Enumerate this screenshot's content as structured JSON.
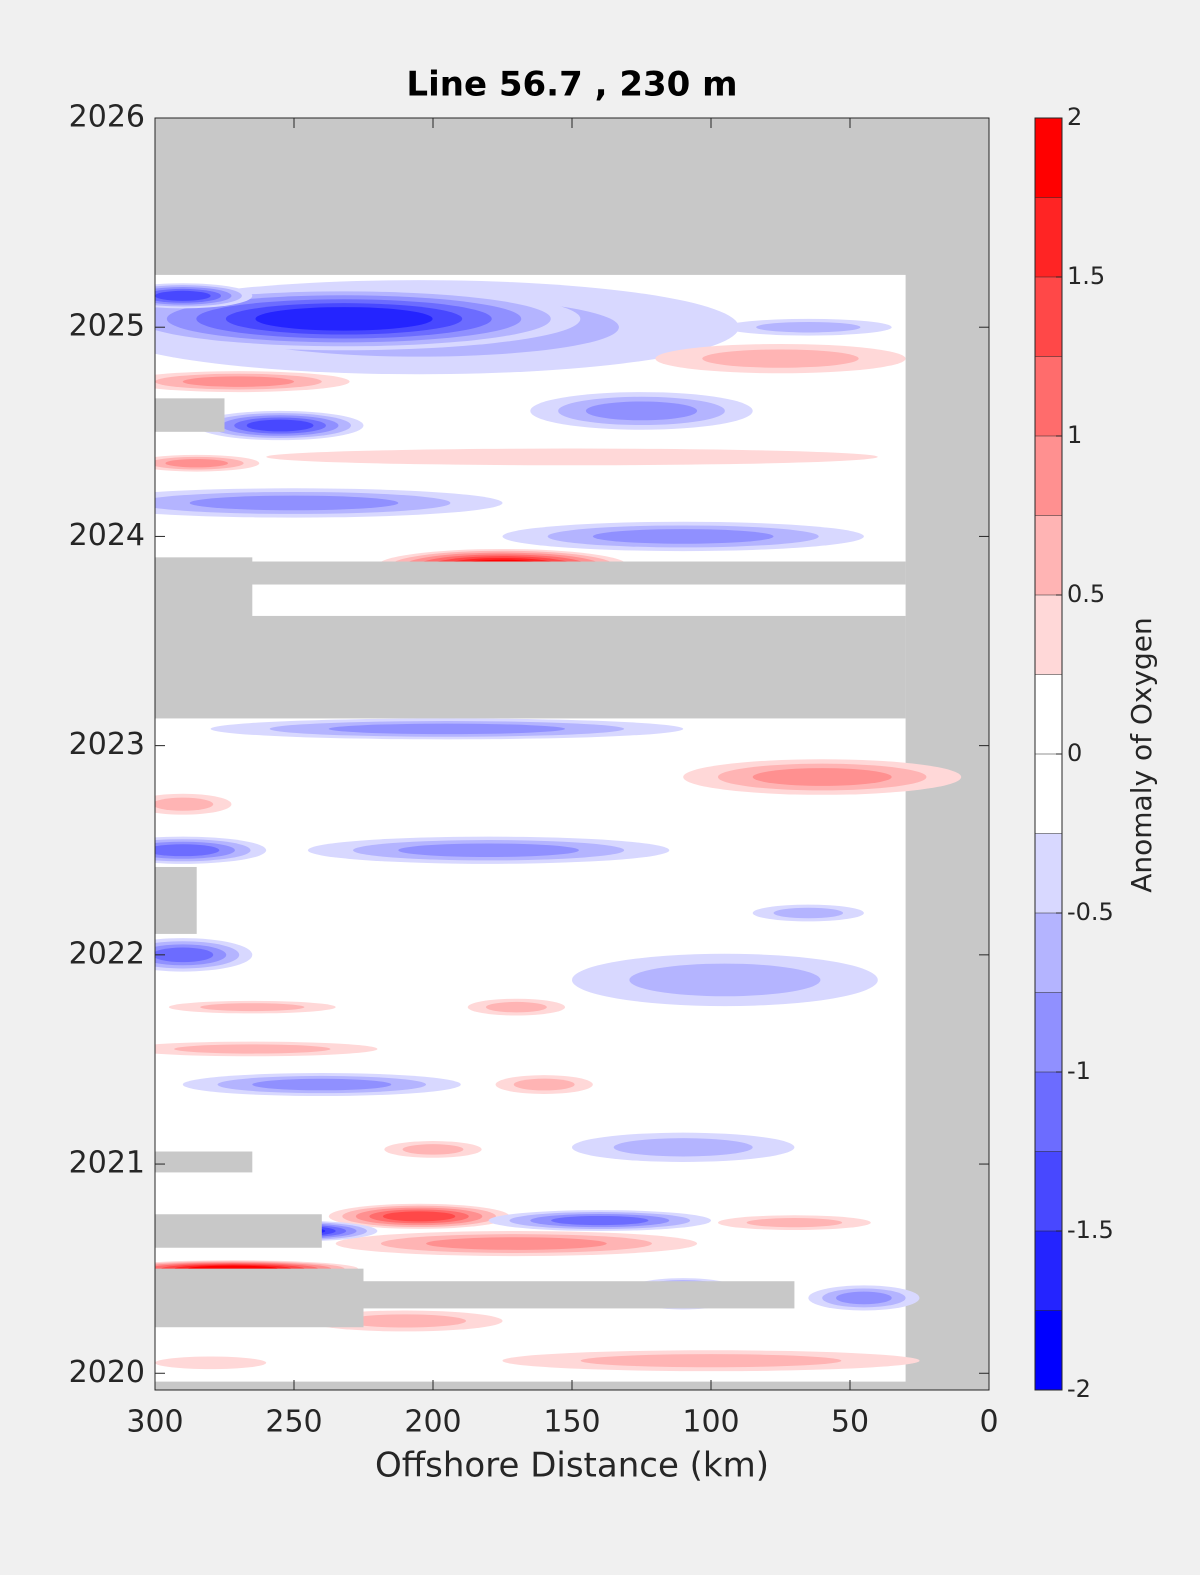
{
  "chart_data": {
    "type": "contour",
    "title": "Line 56.7 , 230 m",
    "x_label": "Offshore Distance (km)",
    "xlim": [
      300,
      0
    ],
    "xticks": [
      300,
      250,
      200,
      150,
      100,
      50,
      0
    ],
    "ylim": [
      2019.92,
      2026
    ],
    "yticks": [
      2020,
      2021,
      2022,
      2023,
      2024,
      2025,
      2026
    ],
    "background_color": "#c8c8c8",
    "data_extent": {
      "x": [
        300,
        30
      ],
      "y": [
        2019.96,
        2025.25
      ]
    },
    "features": [
      {
        "x": 205,
        "y": 2025.0,
        "width": 230,
        "height": 0.45,
        "value": -0.5
      },
      {
        "x": 232,
        "y": 2025.04,
        "width": 170,
        "height": 0.3,
        "value": -1.5
      },
      {
        "x": 290,
        "y": 2025.15,
        "width": 50,
        "height": 0.12,
        "value": -1.25
      },
      {
        "x": 65,
        "y": 2025.0,
        "width": 60,
        "height": 0.08,
        "value": -0.5
      },
      {
        "x": 75,
        "y": 2024.85,
        "width": 90,
        "height": 0.14,
        "value": 0.5
      },
      {
        "x": 270,
        "y": 2024.74,
        "width": 80,
        "height": 0.1,
        "value": 0.75
      },
      {
        "x": 125,
        "y": 2024.6,
        "width": 80,
        "height": 0.18,
        "value": -0.75
      },
      {
        "x": 255,
        "y": 2024.53,
        "width": 60,
        "height": 0.14,
        "value": -1.25
      },
      {
        "x": 150,
        "y": 2024.38,
        "width": 220,
        "height": 0.08,
        "value": 0.25
      },
      {
        "x": 285,
        "y": 2024.35,
        "width": 45,
        "height": 0.08,
        "value": 0.75
      },
      {
        "x": 250,
        "y": 2024.16,
        "width": 150,
        "height": 0.14,
        "value": -0.75
      },
      {
        "x": 110,
        "y": 2024.0,
        "width": 130,
        "height": 0.14,
        "value": -0.75
      },
      {
        "x": 175,
        "y": 2023.86,
        "width": 90,
        "height": 0.16,
        "value": 1.75
      },
      {
        "x": 195,
        "y": 2023.08,
        "width": 170,
        "height": 0.1,
        "value": -0.75
      },
      {
        "x": 60,
        "y": 2022.85,
        "width": 100,
        "height": 0.17,
        "value": 0.75
      },
      {
        "x": 290,
        "y": 2022.72,
        "width": 35,
        "height": 0.1,
        "value": 0.5
      },
      {
        "x": 290,
        "y": 2022.5,
        "width": 60,
        "height": 0.13,
        "value": -1.0
      },
      {
        "x": 180,
        "y": 2022.5,
        "width": 130,
        "height": 0.13,
        "value": -0.75
      },
      {
        "x": 65,
        "y": 2022.2,
        "width": 40,
        "height": 0.08,
        "value": -0.5
      },
      {
        "x": 290,
        "y": 2022.0,
        "width": 50,
        "height": 0.16,
        "value": -1.0
      },
      {
        "x": 95,
        "y": 2021.88,
        "width": 110,
        "height": 0.25,
        "value": -0.5
      },
      {
        "x": 170,
        "y": 2021.75,
        "width": 35,
        "height": 0.08,
        "value": 0.5
      },
      {
        "x": 265,
        "y": 2021.75,
        "width": 60,
        "height": 0.06,
        "value": 0.5
      },
      {
        "x": 265,
        "y": 2021.55,
        "width": 90,
        "height": 0.07,
        "value": 0.5
      },
      {
        "x": 240,
        "y": 2021.38,
        "width": 100,
        "height": 0.11,
        "value": -0.75
      },
      {
        "x": 160,
        "y": 2021.38,
        "width": 35,
        "height": 0.09,
        "value": 0.5
      },
      {
        "x": 110,
        "y": 2021.08,
        "width": 80,
        "height": 0.14,
        "value": -0.5
      },
      {
        "x": 200,
        "y": 2021.07,
        "width": 35,
        "height": 0.08,
        "value": 0.5
      },
      {
        "x": 205,
        "y": 2020.75,
        "width": 65,
        "height": 0.12,
        "value": 1.25
      },
      {
        "x": 170,
        "y": 2020.62,
        "width": 130,
        "height": 0.12,
        "value": 0.75
      },
      {
        "x": 140,
        "y": 2020.73,
        "width": 80,
        "height": 0.1,
        "value": -1.0
      },
      {
        "x": 70,
        "y": 2020.72,
        "width": 55,
        "height": 0.07,
        "value": 0.5
      },
      {
        "x": 250,
        "y": 2020.68,
        "width": 60,
        "height": 0.1,
        "value": -1.5
      },
      {
        "x": 272,
        "y": 2020.5,
        "width": 90,
        "height": 0.08,
        "value": 1.75
      },
      {
        "x": 110,
        "y": 2020.38,
        "width": 45,
        "height": 0.15,
        "value": -1.5
      },
      {
        "x": 45,
        "y": 2020.36,
        "width": 40,
        "height": 0.12,
        "value": -0.75
      },
      {
        "x": 210,
        "y": 2020.25,
        "width": 70,
        "height": 0.1,
        "value": 0.5
      },
      {
        "x": 100,
        "y": 2020.06,
        "width": 150,
        "height": 0.1,
        "value": 0.5
      },
      {
        "x": 280,
        "y": 2020.05,
        "width": 40,
        "height": 0.06,
        "value": 0.25
      }
    ],
    "missing": [
      {
        "x": [
          300,
          30
        ],
        "y": [
          2023.13,
          2023.62
        ]
      },
      {
        "x": [
          300,
          30
        ],
        "y": [
          2023.77,
          2023.88
        ]
      },
      {
        "x": [
          300,
          265
        ],
        "y": [
          2023.6,
          2023.9
        ]
      },
      {
        "x": [
          300,
          275
        ],
        "y": [
          2024.5,
          2024.66
        ]
      },
      {
        "x": [
          300,
          285
        ],
        "y": [
          2022.1,
          2022.42
        ]
      },
      {
        "x": [
          300,
          265
        ],
        "y": [
          2020.96,
          2021.06
        ]
      },
      {
        "x": [
          300,
          240
        ],
        "y": [
          2020.6,
          2020.76
        ]
      },
      {
        "x": [
          300,
          70
        ],
        "y": [
          2020.31,
          2020.44
        ]
      },
      {
        "x": [
          300,
          225
        ],
        "y": [
          2020.22,
          2020.5
        ]
      }
    ],
    "colorbar": {
      "label": "Anomaly of Oxygen",
      "levels": [
        -2,
        -1.75,
        -1.5,
        -1.25,
        -1,
        -0.75,
        -0.5,
        -0.25,
        0,
        0.25,
        0.5,
        0.75,
        1,
        1.25,
        1.5,
        1.75,
        2
      ],
      "colormap": [
        "#0000ff",
        "#2424ff",
        "#4848ff",
        "#6c6cff",
        "#9090ff",
        "#b4b4ff",
        "#d8d8ff",
        "#ffffff",
        "#ffffff",
        "#ffd8d8",
        "#ffb4b4",
        "#ff9090",
        "#ff6c6c",
        "#ff4848",
        "#ff2424",
        "#ff0000"
      ],
      "ticks": [
        -2,
        -1.5,
        -1,
        -0.5,
        0,
        0.5,
        1,
        1.5,
        2
      ]
    }
  }
}
